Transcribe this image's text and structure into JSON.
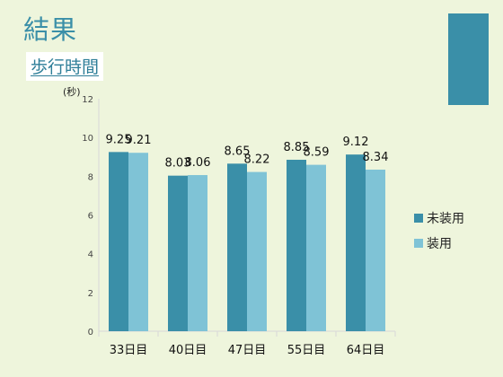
{
  "slide": {
    "title": "結果",
    "subtitle": "歩行時間"
  },
  "colors": {
    "background": "#eef5dc",
    "accent": "#3a8fa8",
    "series_dark": "#3a8fa8",
    "series_light": "#7fc3d6"
  },
  "chart_data": {
    "type": "bar",
    "ylabel": "(秒)",
    "ylim": [
      0,
      12
    ],
    "yticks": [
      0,
      2,
      4,
      6,
      8,
      10,
      12
    ],
    "categories": [
      "33日目",
      "40日目",
      "47日目",
      "55日目",
      "64日目"
    ],
    "series": [
      {
        "name": "未装用",
        "values": [
          9.25,
          8.03,
          8.65,
          8.85,
          9.12
        ],
        "color": "#3a8fa8"
      },
      {
        "name": "装用",
        "values": [
          9.21,
          8.06,
          8.22,
          8.59,
          8.34
        ],
        "color": "#7fc3d6"
      }
    ],
    "legend": "right",
    "grid": false
  }
}
